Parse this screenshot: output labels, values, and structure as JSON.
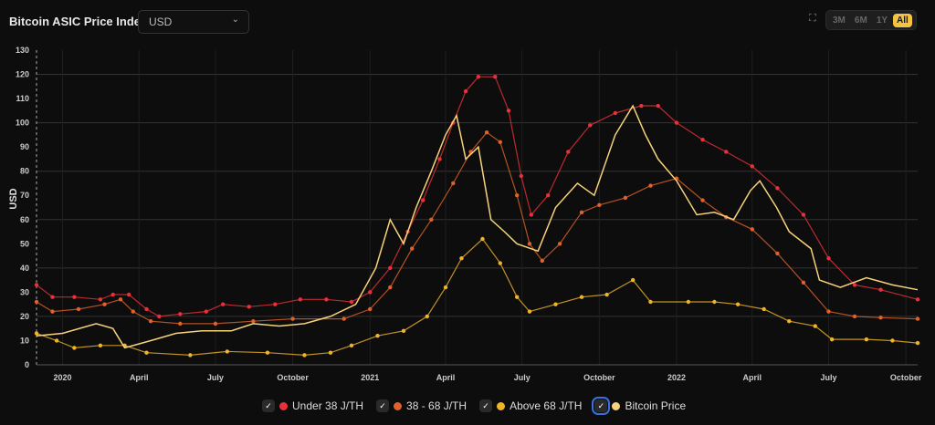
{
  "header": {
    "title": "Bitcoin ASIC Price Index",
    "currency": "USD",
    "fullscreen_icon": "fullscreen-icon",
    "ranges": [
      "3M",
      "6M",
      "1Y",
      "All"
    ],
    "active_range": "All"
  },
  "chart_data": {
    "type": "line",
    "ylabel": "USD",
    "ylim": [
      0,
      130
    ],
    "yticks": [
      0,
      10,
      20,
      30,
      40,
      50,
      60,
      70,
      80,
      90,
      100,
      110,
      120,
      130
    ],
    "xlim": [
      "2019-12-01",
      "2022-10-15"
    ],
    "xticks": [
      {
        "date": "2020-01-01",
        "label": "2020"
      },
      {
        "date": "2020-04-01",
        "label": "April"
      },
      {
        "date": "2020-07-01",
        "label": "July"
      },
      {
        "date": "2020-10-01",
        "label": "October"
      },
      {
        "date": "2021-01-01",
        "label": "2021"
      },
      {
        "date": "2021-04-01",
        "label": "April"
      },
      {
        "date": "2021-07-01",
        "label": "July"
      },
      {
        "date": "2021-10-01",
        "label": "October"
      },
      {
        "date": "2022-01-01",
        "label": "2022"
      },
      {
        "date": "2022-04-01",
        "label": "April"
      },
      {
        "date": "2022-07-01",
        "label": "July"
      },
      {
        "date": "2022-10-01",
        "label": "October"
      }
    ],
    "grid": true,
    "legend": "bottom",
    "series": [
      {
        "name": "Under 38 J/TH",
        "color": "#e8313a",
        "style": "dots",
        "points": [
          [
            "2019-12-01",
            33
          ],
          [
            "2019-12-20",
            28
          ],
          [
            "2020-01-15",
            28
          ],
          [
            "2020-02-15",
            27
          ],
          [
            "2020-03-01",
            29
          ],
          [
            "2020-03-20",
            29
          ],
          [
            "2020-04-10",
            23
          ],
          [
            "2020-04-25",
            20
          ],
          [
            "2020-05-20",
            21
          ],
          [
            "2020-06-20",
            22
          ],
          [
            "2020-07-10",
            25
          ],
          [
            "2020-08-10",
            24
          ],
          [
            "2020-09-10",
            25
          ],
          [
            "2020-10-10",
            27
          ],
          [
            "2020-11-10",
            27
          ],
          [
            "2020-12-10",
            26
          ],
          [
            "2021-01-01",
            30
          ],
          [
            "2021-01-25",
            40
          ],
          [
            "2021-02-15",
            55
          ],
          [
            "2021-03-05",
            68
          ],
          [
            "2021-03-25",
            85
          ],
          [
            "2021-04-10",
            100
          ],
          [
            "2021-04-25",
            113
          ],
          [
            "2021-05-10",
            119
          ],
          [
            "2021-05-30",
            119
          ],
          [
            "2021-06-15",
            105
          ],
          [
            "2021-06-30",
            78
          ],
          [
            "2021-07-12",
            62
          ],
          [
            "2021-08-01",
            70
          ],
          [
            "2021-08-25",
            88
          ],
          [
            "2021-09-20",
            99
          ],
          [
            "2021-10-20",
            104
          ],
          [
            "2021-11-20",
            107
          ],
          [
            "2021-12-10",
            107
          ],
          [
            "2022-01-01",
            100
          ],
          [
            "2022-02-01",
            93
          ],
          [
            "2022-03-01",
            88
          ],
          [
            "2022-04-01",
            82
          ],
          [
            "2022-05-01",
            73
          ],
          [
            "2022-06-01",
            62
          ],
          [
            "2022-07-01",
            44
          ],
          [
            "2022-08-01",
            33
          ],
          [
            "2022-09-01",
            31
          ],
          [
            "2022-10-15",
            27
          ]
        ]
      },
      {
        "name": "38 - 68 J/TH",
        "color": "#e0612a",
        "style": "dots",
        "points": [
          [
            "2019-12-01",
            26
          ],
          [
            "2019-12-20",
            22
          ],
          [
            "2020-01-20",
            23
          ],
          [
            "2020-02-20",
            25
          ],
          [
            "2020-03-10",
            27
          ],
          [
            "2020-03-25",
            22
          ],
          [
            "2020-04-15",
            18
          ],
          [
            "2020-05-20",
            17
          ],
          [
            "2020-07-01",
            17
          ],
          [
            "2020-08-15",
            18
          ],
          [
            "2020-10-01",
            19
          ],
          [
            "2020-12-01",
            19
          ],
          [
            "2021-01-01",
            23
          ],
          [
            "2021-01-25",
            32
          ],
          [
            "2021-02-20",
            48
          ],
          [
            "2021-03-15",
            60
          ],
          [
            "2021-04-10",
            75
          ],
          [
            "2021-05-01",
            88
          ],
          [
            "2021-05-20",
            96
          ],
          [
            "2021-06-05",
            92
          ],
          [
            "2021-06-25",
            70
          ],
          [
            "2021-07-10",
            50
          ],
          [
            "2021-07-25",
            43
          ],
          [
            "2021-08-15",
            50
          ],
          [
            "2021-09-10",
            63
          ],
          [
            "2021-10-01",
            66
          ],
          [
            "2021-11-01",
            69
          ],
          [
            "2021-12-01",
            74
          ],
          [
            "2022-01-01",
            77
          ],
          [
            "2022-02-01",
            68
          ],
          [
            "2022-03-01",
            61
          ],
          [
            "2022-04-01",
            56
          ],
          [
            "2022-05-01",
            46
          ],
          [
            "2022-06-01",
            34
          ],
          [
            "2022-07-01",
            22
          ],
          [
            "2022-08-01",
            20
          ],
          [
            "2022-09-01",
            19.5
          ],
          [
            "2022-10-15",
            19
          ]
        ]
      },
      {
        "name": "Above 68 J/TH",
        "color": "#f0b429",
        "style": "dots",
        "points": [
          [
            "2019-12-01",
            13
          ],
          [
            "2019-12-25",
            10
          ],
          [
            "2020-01-15",
            7
          ],
          [
            "2020-02-15",
            8
          ],
          [
            "2020-03-15",
            8
          ],
          [
            "2020-04-10",
            5
          ],
          [
            "2020-06-01",
            4
          ],
          [
            "2020-07-15",
            5.5
          ],
          [
            "2020-09-01",
            5
          ],
          [
            "2020-10-15",
            4
          ],
          [
            "2020-11-15",
            5
          ],
          [
            "2020-12-10",
            8
          ],
          [
            "2021-01-10",
            12
          ],
          [
            "2021-02-10",
            14
          ],
          [
            "2021-03-10",
            20
          ],
          [
            "2021-04-01",
            32
          ],
          [
            "2021-04-20",
            44
          ],
          [
            "2021-05-15",
            52
          ],
          [
            "2021-06-05",
            42
          ],
          [
            "2021-06-25",
            28
          ],
          [
            "2021-07-10",
            22
          ],
          [
            "2021-08-10",
            25
          ],
          [
            "2021-09-10",
            28
          ],
          [
            "2021-10-10",
            29
          ],
          [
            "2021-11-10",
            35
          ],
          [
            "2021-12-01",
            26
          ],
          [
            "2022-01-15",
            26
          ],
          [
            "2022-02-15",
            26
          ],
          [
            "2022-03-15",
            25
          ],
          [
            "2022-04-15",
            23
          ],
          [
            "2022-05-15",
            18
          ],
          [
            "2022-06-15",
            16
          ],
          [
            "2022-07-05",
            10.5
          ],
          [
            "2022-08-15",
            10.5
          ],
          [
            "2022-09-15",
            10
          ],
          [
            "2022-10-15",
            9
          ]
        ]
      },
      {
        "name": "Bitcoin Price",
        "color": "#f7d27a",
        "style": "line",
        "points": [
          [
            "2019-12-01",
            12
          ],
          [
            "2020-01-01",
            13
          ],
          [
            "2020-02-10",
            17
          ],
          [
            "2020-03-01",
            15
          ],
          [
            "2020-03-15",
            7
          ],
          [
            "2020-04-15",
            10
          ],
          [
            "2020-05-15",
            13
          ],
          [
            "2020-06-15",
            14
          ],
          [
            "2020-07-20",
            14
          ],
          [
            "2020-08-15",
            17
          ],
          [
            "2020-09-15",
            16
          ],
          [
            "2020-10-15",
            17
          ],
          [
            "2020-11-15",
            20
          ],
          [
            "2020-12-15",
            25
          ],
          [
            "2021-01-08",
            40
          ],
          [
            "2021-01-25",
            60
          ],
          [
            "2021-02-10",
            50
          ],
          [
            "2021-02-25",
            65
          ],
          [
            "2021-03-15",
            80
          ],
          [
            "2021-04-01",
            95
          ],
          [
            "2021-04-14",
            103
          ],
          [
            "2021-04-25",
            85
          ],
          [
            "2021-05-10",
            90
          ],
          [
            "2021-05-25",
            60
          ],
          [
            "2021-06-10",
            55
          ],
          [
            "2021-06-25",
            50
          ],
          [
            "2021-07-20",
            47
          ],
          [
            "2021-08-10",
            65
          ],
          [
            "2021-09-05",
            75
          ],
          [
            "2021-09-25",
            70
          ],
          [
            "2021-10-20",
            95
          ],
          [
            "2021-11-10",
            107
          ],
          [
            "2021-11-25",
            95
          ],
          [
            "2021-12-10",
            85
          ],
          [
            "2022-01-01",
            76
          ],
          [
            "2022-01-25",
            62
          ],
          [
            "2022-02-15",
            63
          ],
          [
            "2022-03-10",
            60
          ],
          [
            "2022-03-30",
            72
          ],
          [
            "2022-04-10",
            76
          ],
          [
            "2022-04-30",
            65
          ],
          [
            "2022-05-15",
            55
          ],
          [
            "2022-06-10",
            48
          ],
          [
            "2022-06-20",
            35
          ],
          [
            "2022-07-15",
            32
          ],
          [
            "2022-08-15",
            36
          ],
          [
            "2022-09-15",
            33
          ],
          [
            "2022-10-15",
            31
          ]
        ]
      }
    ]
  }
}
